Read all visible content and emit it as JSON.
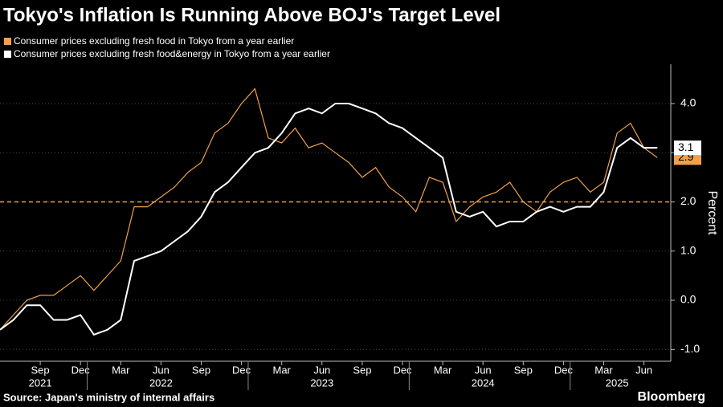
{
  "chart_data": {
    "type": "line",
    "title": "Tokyo's Inflation Is Running Above BOJ's Target Level",
    "y_label": "Percent",
    "source": "Source: Japan's ministry of internal affairs",
    "brand": "Bloomberg",
    "x": [
      "2021-06",
      "2021-07",
      "2021-08",
      "2021-09",
      "2021-10",
      "2021-11",
      "2021-12",
      "2022-01",
      "2022-02",
      "2022-03",
      "2022-04",
      "2022-05",
      "2022-06",
      "2022-07",
      "2022-08",
      "2022-09",
      "2022-10",
      "2022-11",
      "2022-12",
      "2023-01",
      "2023-02",
      "2023-03",
      "2023-04",
      "2023-05",
      "2023-06",
      "2023-07",
      "2023-08",
      "2023-09",
      "2023-10",
      "2023-11",
      "2023-12",
      "2024-01",
      "2024-02",
      "2024-03",
      "2024-04",
      "2024-05",
      "2024-06",
      "2024-07",
      "2024-08",
      "2024-09",
      "2024-10",
      "2024-11",
      "2024-12",
      "2025-01",
      "2025-02",
      "2025-03",
      "2025-04",
      "2025-05",
      "2025-06",
      "2025-07"
    ],
    "series": [
      {
        "name": "Consumer prices excluding fresh food in Tokyo from a year earlier",
        "color": "#f0a04b",
        "end_label": "2.9",
        "values": [
          -0.6,
          -0.3,
          0.0,
          0.1,
          0.1,
          0.3,
          0.5,
          0.2,
          0.5,
          0.8,
          1.9,
          1.9,
          2.1,
          2.3,
          2.6,
          2.8,
          3.4,
          3.6,
          4.0,
          4.3,
          3.3,
          3.2,
          3.5,
          3.1,
          3.2,
          3.0,
          2.8,
          2.5,
          2.7,
          2.3,
          2.1,
          1.8,
          2.5,
          2.4,
          1.6,
          1.9,
          2.1,
          2.2,
          2.4,
          2.0,
          1.8,
          2.2,
          2.4,
          2.5,
          2.2,
          2.4,
          3.4,
          3.6,
          3.1,
          2.9
        ]
      },
      {
        "name": "Consumer prices excluding fresh food&energy in Tokyo from a year earlier",
        "color": "#ffffff",
        "end_label": "3.1",
        "values": [
          -0.6,
          -0.4,
          -0.1,
          -0.1,
          -0.4,
          -0.4,
          -0.3,
          -0.7,
          -0.6,
          -0.4,
          0.8,
          0.9,
          1.0,
          1.2,
          1.4,
          1.7,
          2.2,
          2.4,
          2.7,
          3.0,
          3.1,
          3.4,
          3.8,
          3.9,
          3.8,
          4.0,
          4.0,
          3.9,
          3.8,
          3.6,
          3.5,
          3.3,
          3.1,
          2.9,
          1.8,
          1.7,
          1.8,
          1.5,
          1.6,
          1.6,
          1.8,
          1.9,
          1.8,
          1.9,
          1.9,
          2.2,
          3.1,
          3.3,
          3.1,
          3.1
        ]
      }
    ],
    "reference_line": {
      "value": 2,
      "color": "#f0a04b"
    },
    "ylim": [
      -1.24,
      4.8
    ],
    "yticks": [
      {
        "value": -1,
        "label": "-1.0"
      },
      {
        "value": 0,
        "label": "0.0"
      },
      {
        "value": 1,
        "label": "1.0"
      },
      {
        "value": 2,
        "label": "2.0"
      },
      {
        "value": 3,
        "label": "3.0"
      },
      {
        "value": 4,
        "label": "4.0"
      }
    ],
    "xticks": [
      {
        "value": "2021-09",
        "label": "Sep"
      },
      {
        "value": "2021-12",
        "label": "Dec"
      },
      {
        "value": "2022-03",
        "label": "Mar"
      },
      {
        "value": "2022-06",
        "label": "Jun"
      },
      {
        "value": "2022-09",
        "label": "Sep"
      },
      {
        "value": "2022-12",
        "label": "Dec"
      },
      {
        "value": "2023-03",
        "label": "Mar"
      },
      {
        "value": "2023-06",
        "label": "Jun"
      },
      {
        "value": "2023-09",
        "label": "Sep"
      },
      {
        "value": "2023-12",
        "label": "Dec"
      },
      {
        "value": "2024-03",
        "label": "Mar"
      },
      {
        "value": "2024-06",
        "label": "Jun"
      },
      {
        "value": "2024-09",
        "label": "Sep"
      },
      {
        "value": "2024-12",
        "label": "Dec"
      },
      {
        "value": "2025-03",
        "label": "Mar"
      },
      {
        "value": "2025-06",
        "label": "Jun"
      }
    ],
    "year_labels": [
      {
        "value": "2021-09",
        "label": "2021"
      },
      {
        "value": "2022-06",
        "label": "2022"
      },
      {
        "value": "2023-06",
        "label": "2023"
      },
      {
        "value": "2024-06",
        "label": "2024"
      },
      {
        "value": "2025-04",
        "label": "2025"
      }
    ]
  }
}
